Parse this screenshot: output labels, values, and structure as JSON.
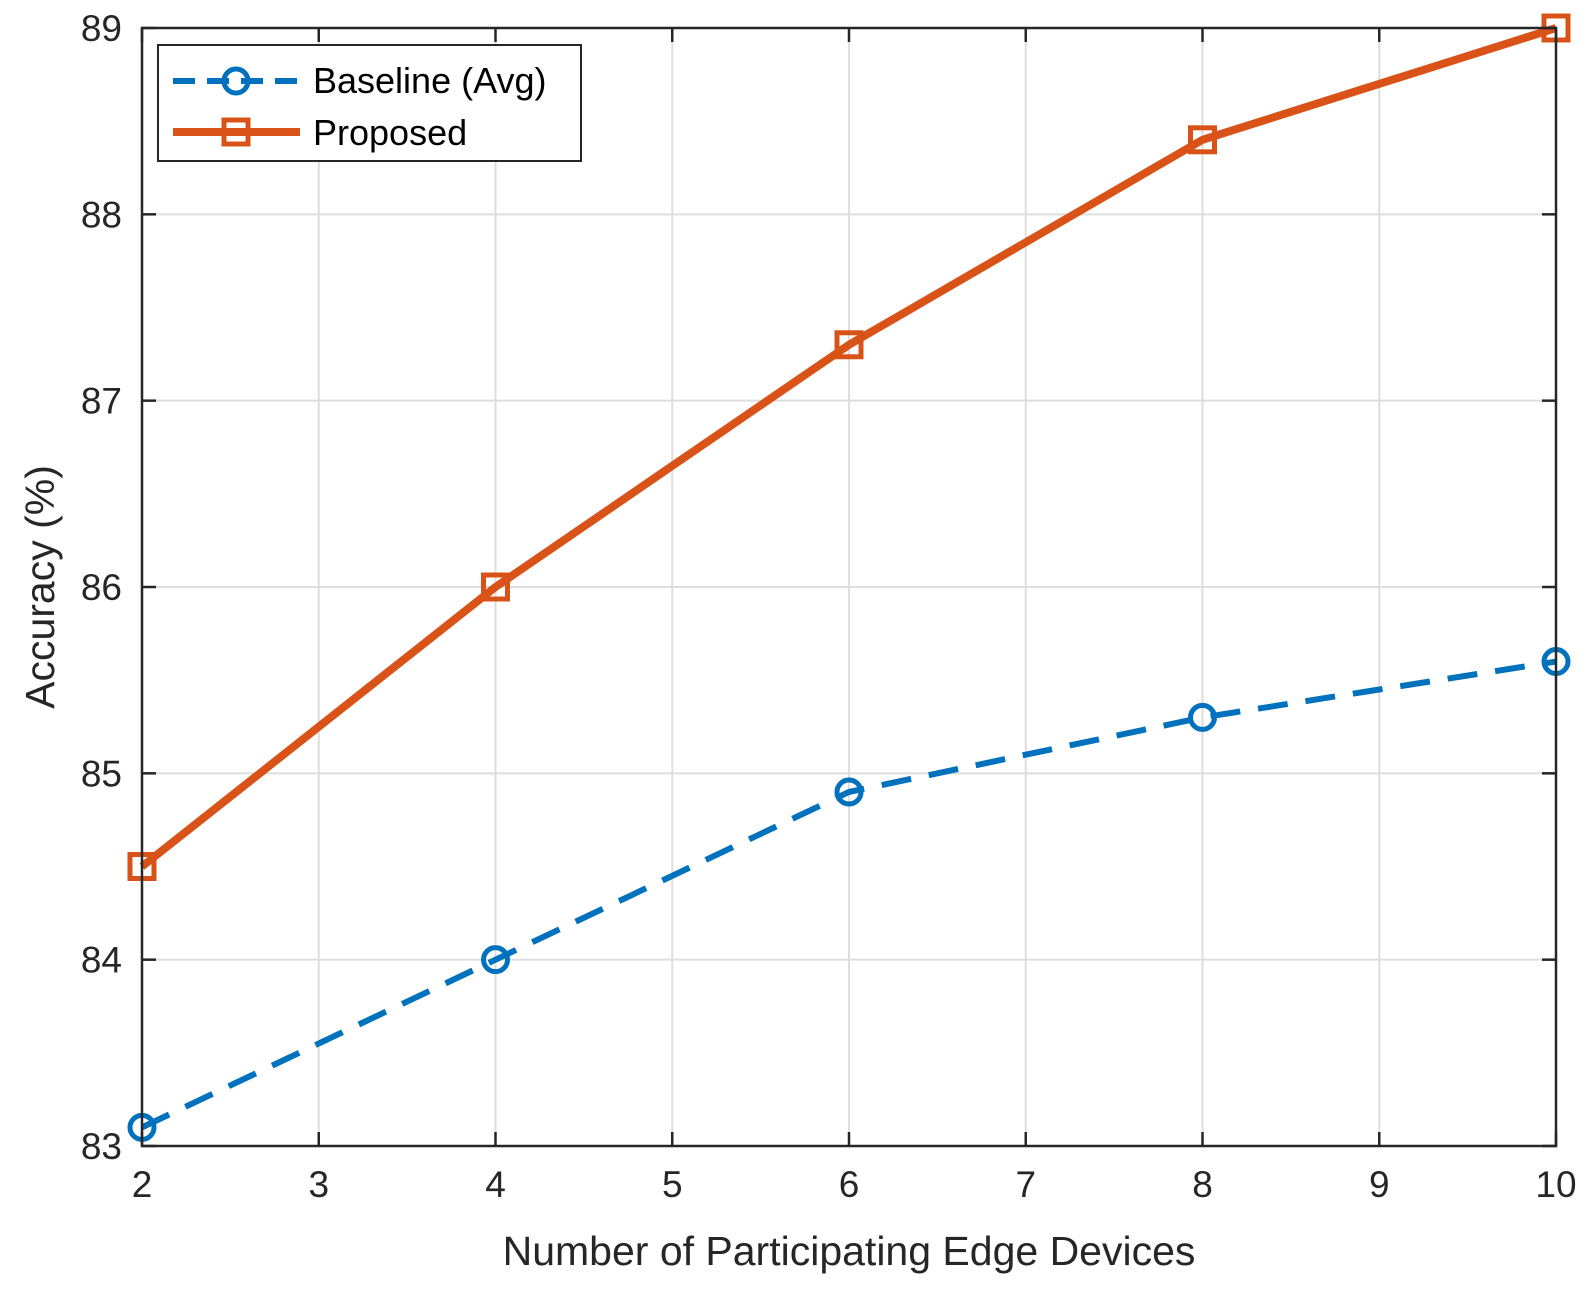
{
  "chart_data": {
    "type": "line",
    "title": "",
    "xlabel": "Number of Participating Edge Devices",
    "ylabel": "Accuracy (%)",
    "xlim": [
      2,
      10
    ],
    "ylim": [
      83,
      89
    ],
    "xticks": [
      2,
      3,
      4,
      5,
      6,
      7,
      8,
      9,
      10
    ],
    "yticks": [
      83,
      84,
      85,
      86,
      87,
      88,
      89
    ],
    "grid": true,
    "legend_position": "top-left",
    "series": [
      {
        "name": "Baseline (Avg)",
        "x": [
          2,
          4,
          6,
          8,
          10
        ],
        "values": [
          83.1,
          84.0,
          84.9,
          85.3,
          85.6
        ],
        "color": "#0072BD",
        "line_style": "dashed",
        "marker": "circle"
      },
      {
        "name": "Proposed",
        "x": [
          2,
          4,
          6,
          8,
          10
        ],
        "values": [
          84.5,
          86.0,
          87.3,
          88.4,
          89.0
        ],
        "color": "#D95319",
        "line_style": "solid",
        "marker": "square"
      }
    ]
  }
}
